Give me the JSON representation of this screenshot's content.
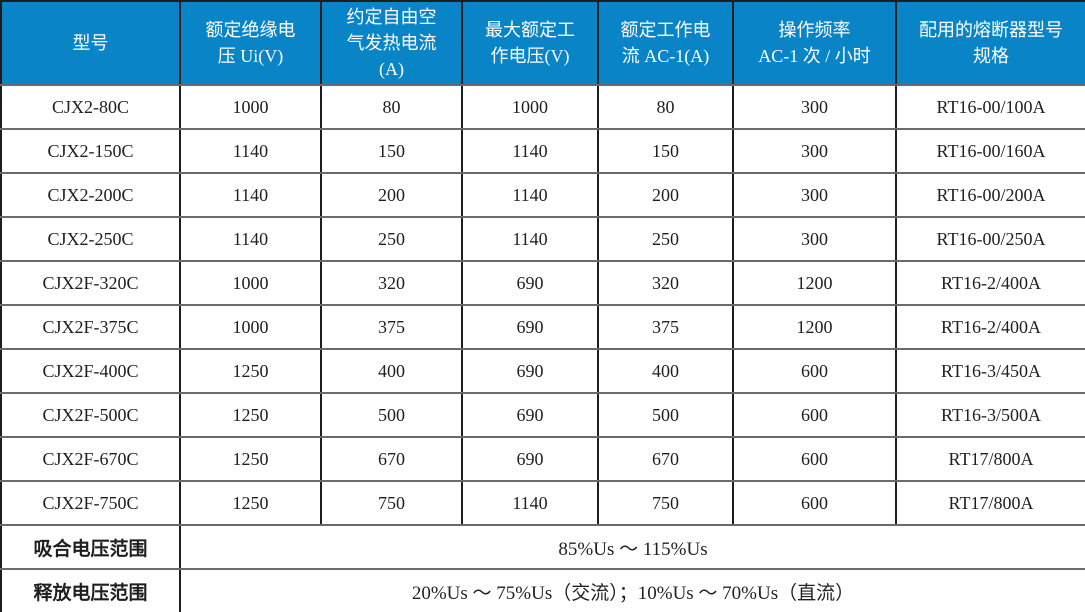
{
  "table": {
    "headers": [
      "型号",
      "额定绝缘电\n压 Ui(V)",
      "约定自由空\n气发热电流\n(A)",
      "最大额定工\n作电压(V)",
      "额定工作电\n流 AC-1(A)",
      "操作频率\nAC-1 次 / 小时",
      "配用的熔断器型号\n规格"
    ],
    "rows": [
      [
        "CJX2-80C",
        "1000",
        "80",
        "1000",
        "80",
        "300",
        "RT16-00/100A"
      ],
      [
        "CJX2-150C",
        "1140",
        "150",
        "1140",
        "150",
        "300",
        "RT16-00/160A"
      ],
      [
        "CJX2-200C",
        "1140",
        "200",
        "1140",
        "200",
        "300",
        "RT16-00/200A"
      ],
      [
        "CJX2-250C",
        "1140",
        "250",
        "1140",
        "250",
        "300",
        "RT16-00/250A"
      ],
      [
        "CJX2F-320C",
        "1000",
        "320",
        "690",
        "320",
        "1200",
        "RT16-2/400A"
      ],
      [
        "CJX2F-375C",
        "1000",
        "375",
        "690",
        "375",
        "1200",
        "RT16-2/400A"
      ],
      [
        "CJX2F-400C",
        "1250",
        "400",
        "690",
        "400",
        "600",
        "RT16-3/450A"
      ],
      [
        "CJX2F-500C",
        "1250",
        "500",
        "690",
        "500",
        "600",
        "RT16-3/500A"
      ],
      [
        "CJX2F-670C",
        "1250",
        "670",
        "690",
        "670",
        "600",
        "RT17/800A"
      ],
      [
        "CJX2F-750C",
        "1250",
        "750",
        "1140",
        "750",
        "600",
        "RT17/800A"
      ]
    ],
    "footer_rows": [
      {
        "label": "吸合电压范围",
        "value": "85%Us ～ 115%Us"
      },
      {
        "label": "释放电压范围",
        "value": "20%Us ～ 75%Us（交流）；10%Us ～ 70%Us（直流）"
      }
    ]
  },
  "colors": {
    "header_bg": "#0984c6",
    "header_text": "#ffffff",
    "body_text": "#1f1f1f",
    "border_outer": "#1e1e1e",
    "border_vertical": "#1e1e1e",
    "border_horizontal": "#6a6a6a"
  }
}
